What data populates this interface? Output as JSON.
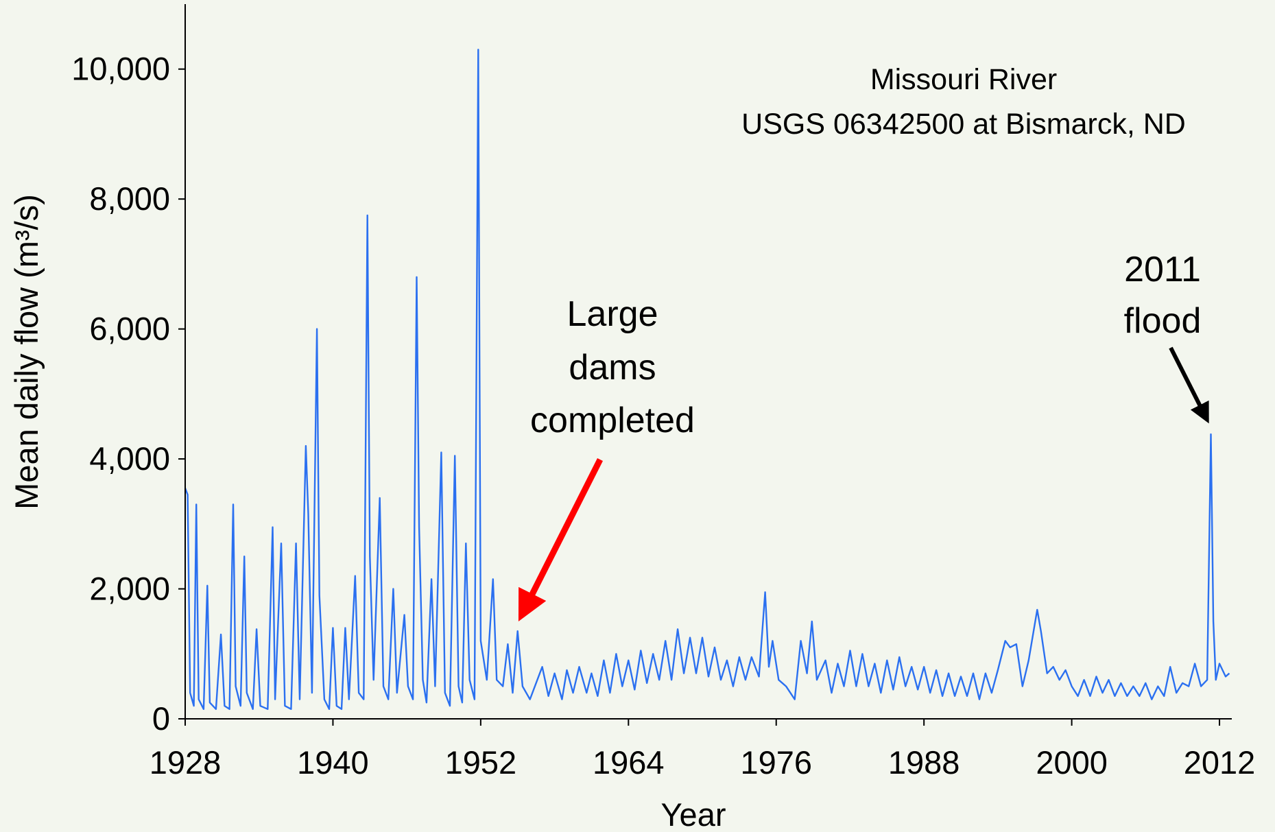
{
  "chart_data": {
    "type": "line",
    "title": "Missouri River",
    "subtitle": "USGS 06342500 at Bismarck, ND",
    "xlabel": "Year",
    "ylabel": "Mean daily flow (m³/s)",
    "annotations": [
      [
        "Large",
        "dams",
        "completed"
      ],
      [
        "2011",
        "flood"
      ]
    ],
    "xlim": [
      1928,
      2013
    ],
    "ylim": [
      0,
      11000
    ],
    "xticks": [
      1928,
      1940,
      1952,
      1964,
      1976,
      1988,
      2000,
      2012
    ],
    "yticks": [
      0,
      {
        "value": 2000,
        "label": "2,000"
      },
      {
        "value": 4000,
        "label": "4,000"
      },
      {
        "value": 6000,
        "label": "6,000"
      },
      {
        "value": 8000,
        "label": "8,000"
      },
      {
        "value": 10000,
        "label": "10,000"
      }
    ],
    "grid": false,
    "x": [
      1928.0,
      1928.2,
      1928.4,
      1928.7,
      1928.9,
      1929.1,
      1929.5,
      1929.8,
      1930.0,
      1930.5,
      1930.9,
      1931.2,
      1931.6,
      1931.9,
      1932.1,
      1932.5,
      1932.8,
      1933.0,
      1933.5,
      1933.8,
      1934.1,
      1934.7,
      1935.1,
      1935.3,
      1935.8,
      1936.1,
      1936.6,
      1937.0,
      1937.3,
      1937.8,
      1938.0,
      1938.3,
      1938.7,
      1938.9,
      1939.3,
      1939.7,
      1940.0,
      1940.3,
      1940.7,
      1941.0,
      1941.3,
      1941.8,
      1942.1,
      1942.5,
      1942.8,
      1943.0,
      1943.3,
      1943.8,
      1944.1,
      1944.5,
      1944.9,
      1945.2,
      1945.8,
      1946.1,
      1946.5,
      1946.8,
      1947.0,
      1947.3,
      1947.6,
      1948.0,
      1948.3,
      1948.8,
      1949.1,
      1949.5,
      1949.9,
      1950.2,
      1950.5,
      1950.8,
      1951.1,
      1951.5,
      1951.8,
      1952.0,
      1952.5,
      1953.0,
      1953.3,
      1953.8,
      1954.2,
      1954.6,
      1955.0,
      1955.4,
      1956.0,
      1957.0,
      1957.5,
      1958.0,
      1958.6,
      1959.0,
      1959.5,
      1960.0,
      1960.6,
      1961.0,
      1961.5,
      1962.0,
      1962.5,
      1963.0,
      1963.5,
      1964.0,
      1964.5,
      1965.0,
      1965.5,
      1966.0,
      1966.5,
      1967.0,
      1967.5,
      1968.0,
      1968.5,
      1969.0,
      1969.5,
      1970.0,
      1970.5,
      1971.0,
      1971.5,
      1972.0,
      1972.5,
      1973.0,
      1973.5,
      1974.0,
      1974.6,
      1975.1,
      1975.4,
      1975.7,
      1976.2,
      1976.8,
      1977.5,
      1978.0,
      1978.5,
      1978.9,
      1979.3,
      1980.0,
      1980.5,
      1981.0,
      1981.5,
      1982.0,
      1982.5,
      1983.0,
      1983.5,
      1984.0,
      1984.5,
      1985.0,
      1985.5,
      1986.0,
      1986.5,
      1987.0,
      1987.5,
      1988.0,
      1988.5,
      1989.0,
      1989.5,
      1990.0,
      1990.5,
      1991.0,
      1991.5,
      1992.0,
      1992.5,
      1993.0,
      1993.5,
      1994.0,
      1994.6,
      1995.0,
      1995.5,
      1996.0,
      1996.5,
      1997.2,
      1997.5,
      1998.0,
      1998.5,
      1999.0,
      1999.5,
      2000.0,
      2000.5,
      2001.0,
      2001.5,
      2002.0,
      2002.5,
      2003.0,
      2003.5,
      2004.0,
      2004.5,
      2005.0,
      2005.5,
      2006.0,
      2006.5,
      2007.0,
      2007.5,
      2008.0,
      2008.5,
      2009.0,
      2009.5,
      2010.0,
      2010.5,
      2011.0,
      2011.3,
      2011.5,
      2011.7,
      2012.0,
      2012.5,
      2012.8
    ],
    "series": [
      {
        "name": "Mean daily flow",
        "color": "#2b70f0",
        "values": [
          3550,
          3450,
          400,
          200,
          3300,
          300,
          150,
          2050,
          250,
          150,
          1300,
          200,
          150,
          3300,
          500,
          200,
          2500,
          400,
          150,
          1380,
          200,
          150,
          2950,
          300,
          2700,
          200,
          150,
          2700,
          300,
          4200,
          3150,
          400,
          6000,
          1900,
          300,
          150,
          1400,
          200,
          150,
          1400,
          300,
          2200,
          400,
          300,
          7750,
          2500,
          600,
          3400,
          500,
          300,
          2000,
          400,
          1600,
          500,
          300,
          6800,
          2950,
          600,
          250,
          2150,
          500,
          4100,
          400,
          200,
          4050,
          500,
          250,
          2700,
          600,
          300,
          10300,
          1200,
          600,
          2150,
          600,
          500,
          1150,
          400,
          1350,
          500,
          300,
          800,
          350,
          700,
          300,
          750,
          400,
          800,
          400,
          700,
          350,
          900,
          400,
          1000,
          500,
          900,
          450,
          1050,
          550,
          1000,
          600,
          1200,
          600,
          1380,
          700,
          1250,
          700,
          1250,
          650,
          1100,
          600,
          900,
          500,
          950,
          600,
          950,
          650,
          1950,
          800,
          1200,
          600,
          500,
          300,
          1200,
          700,
          1500,
          600,
          900,
          400,
          850,
          500,
          1050,
          500,
          1000,
          500,
          850,
          400,
          900,
          450,
          950,
          500,
          800,
          450,
          800,
          400,
          750,
          350,
          700,
          350,
          650,
          350,
          700,
          300,
          700,
          400,
          750,
          1200,
          1100,
          1150,
          500,
          900,
          1680,
          1350,
          700,
          800,
          600,
          750,
          500,
          350,
          600,
          350,
          650,
          400,
          600,
          350,
          550,
          350,
          500,
          350,
          550,
          300,
          500,
          350,
          800,
          400,
          550,
          500,
          850,
          500,
          600,
          4380,
          1500,
          600,
          850,
          650,
          700
        ]
      }
    ]
  }
}
